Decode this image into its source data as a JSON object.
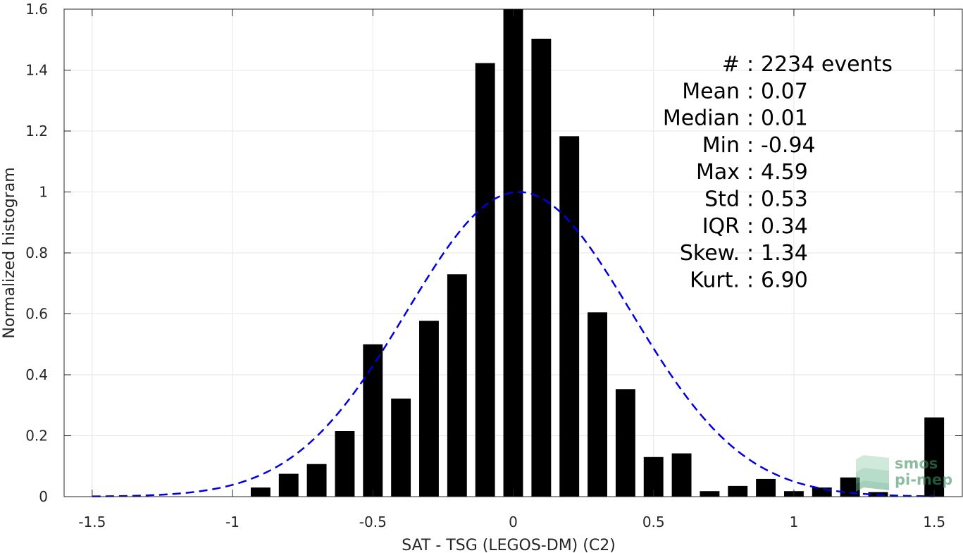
{
  "chart_data": {
    "type": "bar",
    "xlabel": "SAT - TSG (LEGOS-DM) (C2)",
    "ylabel": "Normalized histogram",
    "xlim": [
      -1.6,
      1.6
    ],
    "ylim": [
      0,
      1.6
    ],
    "xticks": [
      -1.5,
      -1,
      -0.5,
      0,
      0.5,
      1,
      1.5
    ],
    "xtick_labels": [
      "-1.5",
      "-1",
      "-0.5",
      "0",
      "0.5",
      "1",
      "1.5"
    ],
    "yticks": [
      0,
      0.2,
      0.4,
      0.6,
      0.8,
      1,
      1.2,
      1.4,
      1.6
    ],
    "ytick_labels": [
      "0",
      "0.2",
      "0.4",
      "0.6",
      "0.8",
      "1",
      "1.2",
      "1.4",
      "1.6"
    ],
    "grid": true,
    "bar_width": 0.07,
    "bar_color": "#000000",
    "bars": {
      "x": [
        -0.9,
        -0.8,
        -0.7,
        -0.6,
        -0.5,
        -0.4,
        -0.3,
        -0.2,
        -0.1,
        0.0,
        0.1,
        0.2,
        0.3,
        0.4,
        0.5,
        0.6,
        0.7,
        0.8,
        0.9,
        1.0,
        1.1,
        1.2,
        1.3,
        1.5
      ],
      "values": [
        0.03,
        0.075,
        0.107,
        0.215,
        0.5,
        0.322,
        0.577,
        0.73,
        1.423,
        1.6,
        1.503,
        1.183,
        0.605,
        0.353,
        0.13,
        0.142,
        0.018,
        0.035,
        0.058,
        0.018,
        0.03,
        0.063,
        0.015,
        0.26
      ]
    },
    "fit_curve": {
      "style": "dashed",
      "color": "#0000e0",
      "mean": 0.02,
      "std": 0.4,
      "peak": 1.0,
      "x_range": [
        -1.5,
        1.5
      ]
    },
    "stats": [
      {
        "label": "#",
        "sep": ":",
        "value": "2234 events"
      },
      {
        "label": "Mean",
        "sep": ":",
        "value": "0.07"
      },
      {
        "label": "Median",
        "sep": ":",
        "value": "0.01"
      },
      {
        "label": "Min",
        "sep": ":",
        "value": "-0.94"
      },
      {
        "label": "Max",
        "sep": ":",
        "value": "4.59"
      },
      {
        "label": "Std",
        "sep": ":",
        "value": "0.53"
      },
      {
        "label": "IQR",
        "sep": ":",
        "value": "0.34"
      },
      {
        "label": "Skew.",
        "sep": ":",
        "value": "1.34"
      },
      {
        "label": "Kurt.",
        "sep": ":",
        "value": "6.90"
      }
    ],
    "watermark": {
      "line1": "smos",
      "line2": "pi-mep"
    }
  }
}
